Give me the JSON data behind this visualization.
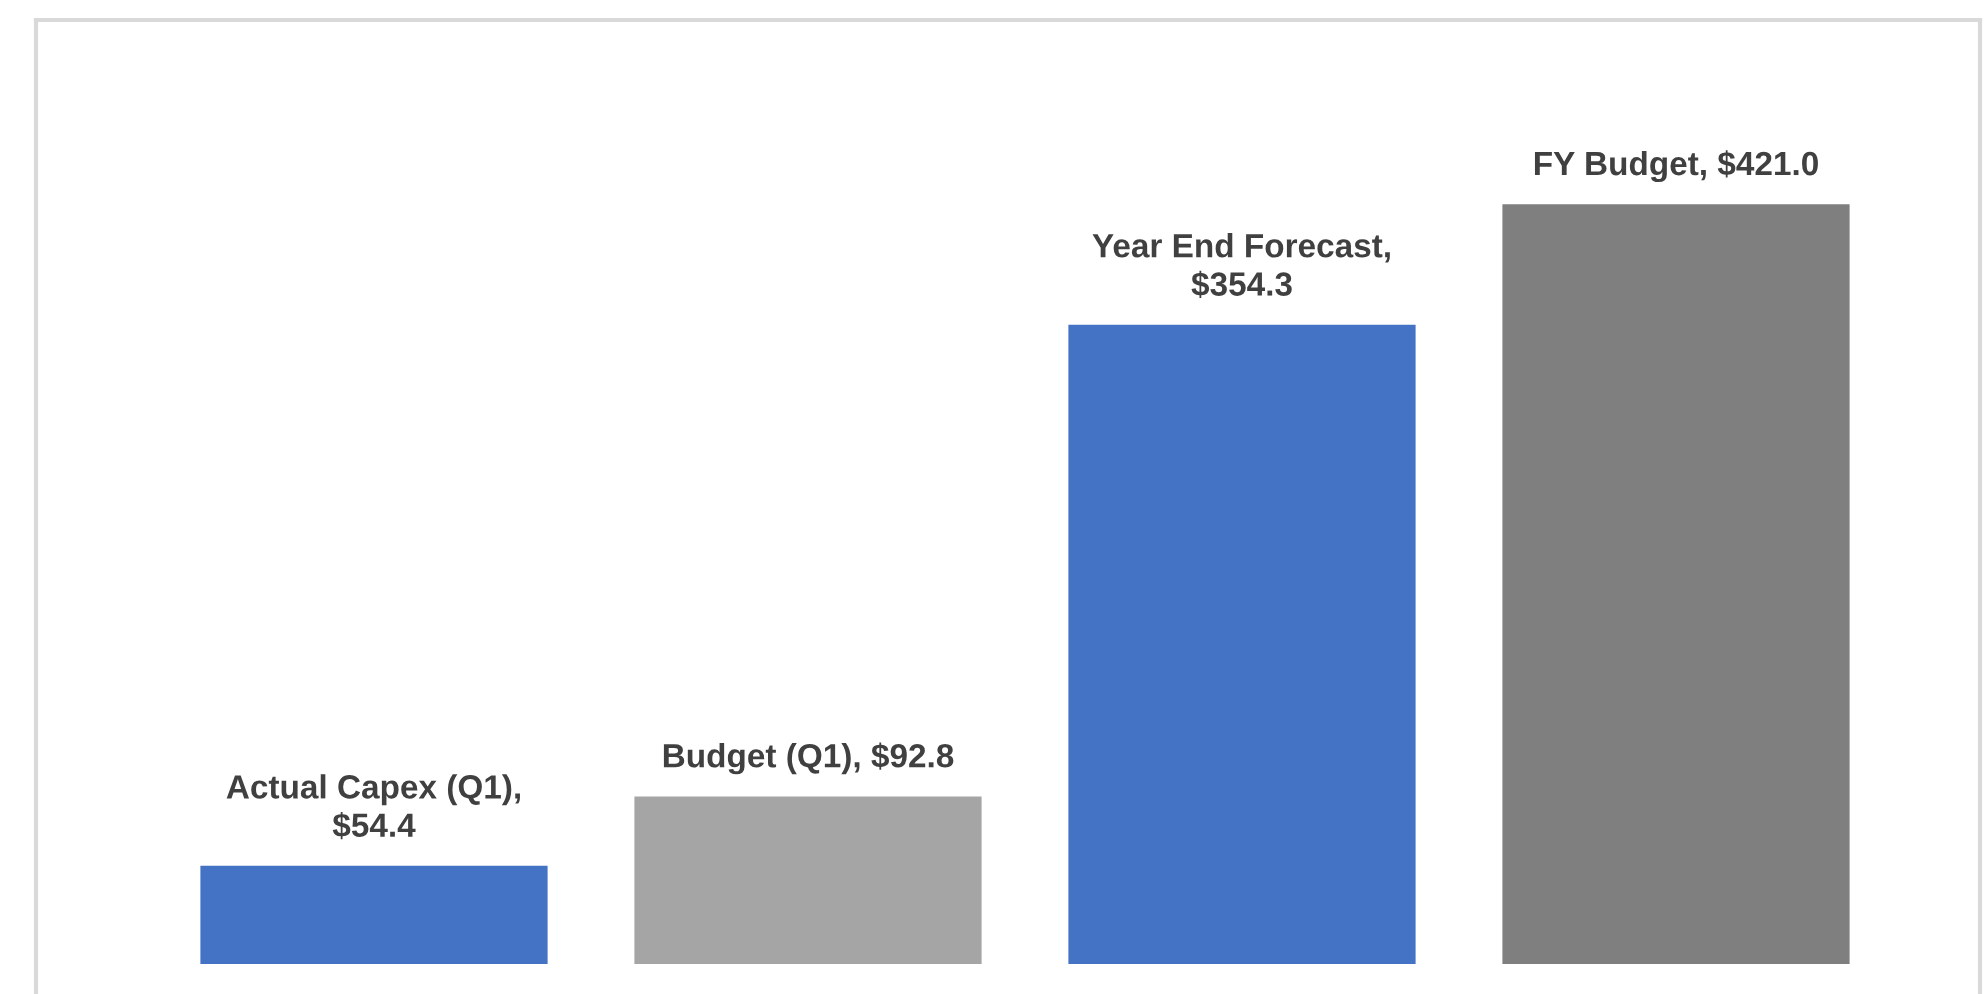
{
  "chart_data": {
    "type": "bar",
    "categories": [
      null,
      null,
      null,
      null
    ],
    "values": [
      54.4,
      92.8,
      354.3,
      421.0
    ],
    "colors": [
      "#4472c4",
      "#a5a5a5",
      "#4472c4",
      "#7f7f7f"
    ],
    "value_labels": [
      "Actual Capex (Q1), $54.4",
      "Budget (Q1), $92.8",
      "Year End Forecast, $354.3",
      "FY Budget, $421.0"
    ],
    "grid": false,
    "legend": false
  }
}
